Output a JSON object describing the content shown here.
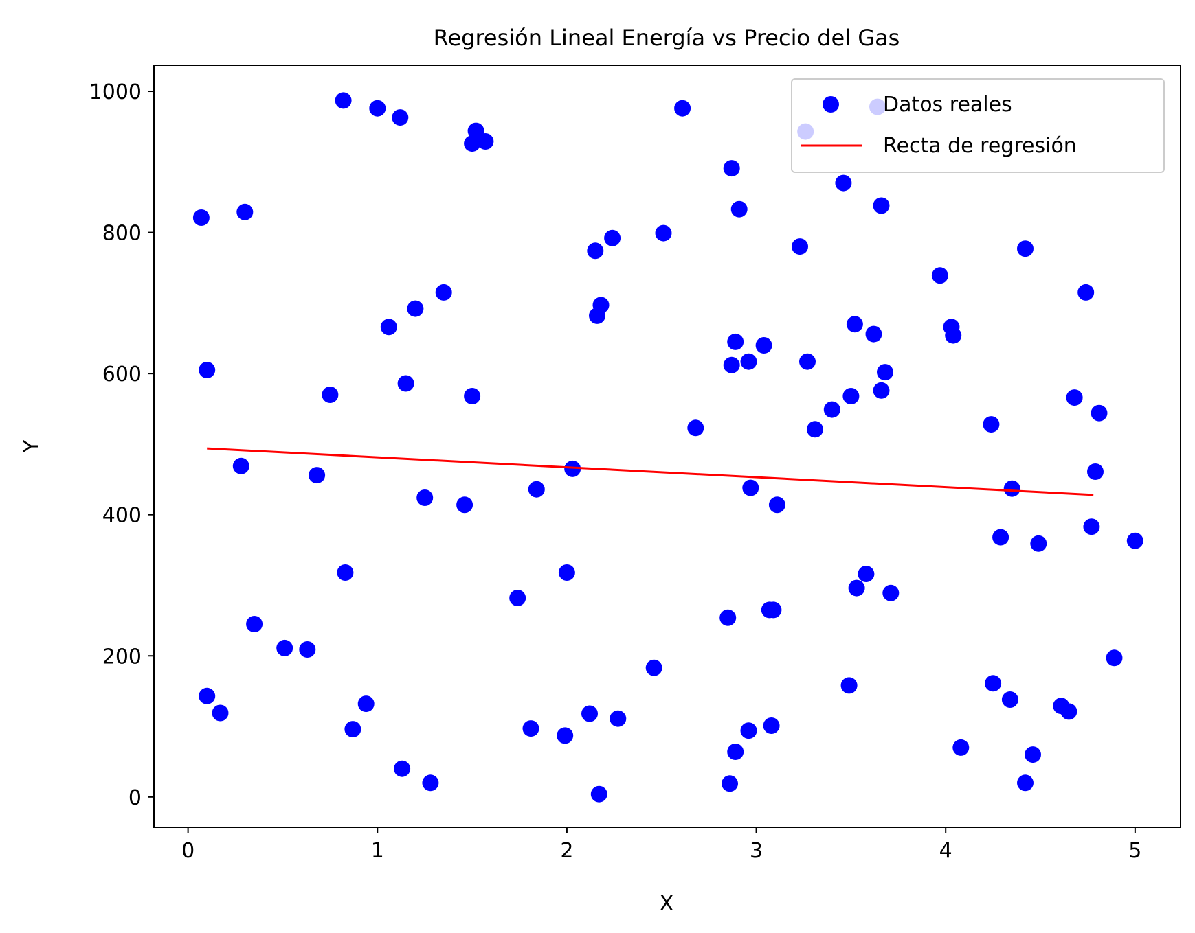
{
  "chart_data": {
    "type": "scatter",
    "title": "Regresión Lineal Energía vs Precio del Gas",
    "xlabel": "X",
    "ylabel": "Y",
    "xlim": [
      -0.18,
      5.24
    ],
    "ylim": [
      -43,
      1037
    ],
    "xticks": [
      0,
      1,
      2,
      3,
      4,
      5
    ],
    "yticks": [
      0,
      200,
      400,
      600,
      800,
      1000
    ],
    "grid": false,
    "legend_position": "top-right",
    "series": [
      {
        "name": "Datos reales",
        "kind": "scatter",
        "color": "#0000ff",
        "points": [
          [
            0.07,
            821
          ],
          [
            0.1,
            605
          ],
          [
            0.1,
            143
          ],
          [
            0.17,
            119
          ],
          [
            0.28,
            469
          ],
          [
            0.3,
            829
          ],
          [
            0.35,
            245
          ],
          [
            0.51,
            211
          ],
          [
            0.63,
            209
          ],
          [
            0.68,
            456
          ],
          [
            0.75,
            570
          ],
          [
            0.82,
            987
          ],
          [
            0.83,
            318
          ],
          [
            0.87,
            96
          ],
          [
            0.94,
            132
          ],
          [
            1.0,
            976
          ],
          [
            1.06,
            666
          ],
          [
            1.12,
            963
          ],
          [
            1.13,
            40
          ],
          [
            1.15,
            586
          ],
          [
            1.2,
            692
          ],
          [
            1.25,
            424
          ],
          [
            1.28,
            20
          ],
          [
            1.35,
            715
          ],
          [
            1.46,
            414
          ],
          [
            1.5,
            926
          ],
          [
            1.5,
            568
          ],
          [
            1.52,
            944
          ],
          [
            1.57,
            929
          ],
          [
            1.74,
            282
          ],
          [
            1.81,
            97
          ],
          [
            1.84,
            436
          ],
          [
            1.99,
            87
          ],
          [
            2.0,
            318
          ],
          [
            2.03,
            465
          ],
          [
            2.12,
            118
          ],
          [
            2.15,
            774
          ],
          [
            2.16,
            682
          ],
          [
            2.17,
            4
          ],
          [
            2.18,
            697
          ],
          [
            2.24,
            792
          ],
          [
            2.27,
            111
          ],
          [
            2.46,
            183
          ],
          [
            2.51,
            799
          ],
          [
            2.61,
            976
          ],
          [
            2.68,
            523
          ],
          [
            2.85,
            254
          ],
          [
            2.86,
            19
          ],
          [
            2.87,
            891
          ],
          [
            2.87,
            612
          ],
          [
            2.89,
            645
          ],
          [
            2.89,
            64
          ],
          [
            2.91,
            833
          ],
          [
            2.96,
            94
          ],
          [
            2.96,
            617
          ],
          [
            2.97,
            438
          ],
          [
            3.04,
            640
          ],
          [
            3.07,
            265
          ],
          [
            3.08,
            101
          ],
          [
            3.09,
            265
          ],
          [
            3.11,
            414
          ],
          [
            3.23,
            780
          ],
          [
            3.26,
            943
          ],
          [
            3.27,
            617
          ],
          [
            3.31,
            521
          ],
          [
            3.4,
            549
          ],
          [
            3.46,
            870
          ],
          [
            3.49,
            158
          ],
          [
            3.5,
            568
          ],
          [
            3.52,
            670
          ],
          [
            3.53,
            296
          ],
          [
            3.58,
            316
          ],
          [
            3.62,
            656
          ],
          [
            3.64,
            978
          ],
          [
            3.66,
            576
          ],
          [
            3.66,
            838
          ],
          [
            3.68,
            602
          ],
          [
            3.71,
            289
          ],
          [
            3.97,
            739
          ],
          [
            4.03,
            666
          ],
          [
            4.04,
            654
          ],
          [
            4.08,
            70
          ],
          [
            4.24,
            528
          ],
          [
            4.25,
            161
          ],
          [
            4.29,
            368
          ],
          [
            4.34,
            138
          ],
          [
            4.35,
            437
          ],
          [
            4.42,
            777
          ],
          [
            4.42,
            20
          ],
          [
            4.46,
            60
          ],
          [
            4.49,
            359
          ],
          [
            4.61,
            129
          ],
          [
            4.65,
            121
          ],
          [
            4.68,
            566
          ],
          [
            4.74,
            715
          ],
          [
            4.77,
            383
          ],
          [
            4.79,
            461
          ],
          [
            4.81,
            544
          ],
          [
            4.89,
            197
          ],
          [
            5.0,
            363
          ]
        ]
      },
      {
        "name": "Recta de regresión",
        "kind": "line",
        "color": "#ff0000",
        "points": [
          [
            0.1,
            494
          ],
          [
            4.78,
            428
          ]
        ]
      }
    ]
  }
}
